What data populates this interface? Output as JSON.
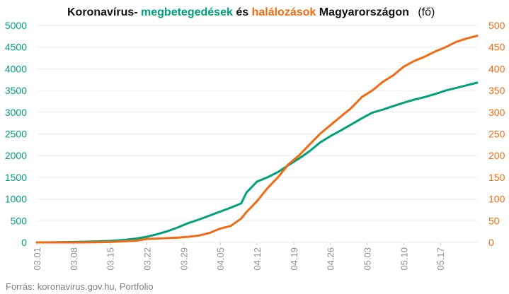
{
  "chart_data": {
    "type": "line",
    "title_parts": [
      {
        "text": "Koronavírus-",
        "color": "#111111"
      },
      {
        "text": "megbetegedések",
        "color": "#00a07a"
      },
      {
        "text": " és ",
        "color": "#111111"
      },
      {
        "text": "halálozások",
        "color": "#f26a12"
      },
      {
        "text": " Magyarországon",
        "color": "#111111"
      }
    ],
    "title_unit": "(fő)",
    "source": "Forrás: koronavirus.gov.hu, Portfolio",
    "y_left": {
      "min": 0,
      "max": 5000,
      "ticks": [
        "0",
        "500",
        "1000",
        "1500",
        "2000",
        "2500",
        "3000",
        "3500",
        "4000",
        "4500",
        "5000"
      ],
      "color": "#00a07a"
    },
    "y_right": {
      "min": 0,
      "max": 500,
      "ticks": [
        "0",
        "50",
        "100",
        "150",
        "200",
        "250",
        "300",
        "350",
        "400",
        "450",
        "500"
      ],
      "color": "#f26a12"
    },
    "x_ticks": [
      "03.01",
      "03.08",
      "03.15",
      "03.22",
      "03.29",
      "04.05",
      "04.12",
      "04.19",
      "04.26",
      "05.03",
      "05.10",
      "05.17"
    ],
    "x_range": [
      "03.01",
      "05.24"
    ],
    "grid": true,
    "series": [
      {
        "name": "megbetegedések",
        "axis": "left",
        "color": "#00a07a",
        "x": [
          "03.01",
          "03.05",
          "03.10",
          "03.15",
          "03.18",
          "03.20",
          "03.22",
          "03.24",
          "03.26",
          "03.28",
          "03.30",
          "04.01",
          "04.03",
          "04.05",
          "04.07",
          "04.09",
          "04.10",
          "04.12",
          "04.14",
          "04.16",
          "04.18",
          "04.20",
          "04.22",
          "04.24",
          "04.26",
          "04.28",
          "04.30",
          "05.02",
          "05.04",
          "05.06",
          "05.08",
          "05.10",
          "05.12",
          "05.14",
          "05.16",
          "05.18",
          "05.20",
          "05.22",
          "05.24"
        ],
        "values": [
          0,
          5,
          15,
          35,
          60,
          90,
          130,
          190,
          260,
          350,
          450,
          530,
          620,
          710,
          800,
          900,
          1150,
          1400,
          1500,
          1620,
          1780,
          1930,
          2100,
          2300,
          2450,
          2580,
          2720,
          2860,
          2990,
          3060,
          3140,
          3220,
          3290,
          3350,
          3420,
          3500,
          3560,
          3620,
          3680
        ]
      },
      {
        "name": "halálozások",
        "axis": "right",
        "color": "#f26a12",
        "x": [
          "03.01",
          "03.10",
          "03.15",
          "03.20",
          "03.22",
          "03.24",
          "03.26",
          "03.28",
          "03.30",
          "04.01",
          "04.03",
          "04.05",
          "04.07",
          "04.09",
          "04.10",
          "04.12",
          "04.14",
          "04.16",
          "04.18",
          "04.20",
          "04.22",
          "04.24",
          "04.26",
          "04.28",
          "04.30",
          "05.02",
          "05.04",
          "05.06",
          "05.08",
          "05.10",
          "05.12",
          "05.14",
          "05.16",
          "05.18",
          "05.20",
          "05.22",
          "05.24"
        ],
        "values": [
          0,
          0,
          1,
          4,
          8,
          9,
          10,
          11,
          13,
          16,
          22,
          32,
          38,
          55,
          70,
          95,
          125,
          150,
          180,
          200,
          225,
          250,
          270,
          290,
          310,
          335,
          350,
          370,
          385,
          405,
          418,
          428,
          440,
          450,
          462,
          470,
          476
        ]
      }
    ]
  }
}
